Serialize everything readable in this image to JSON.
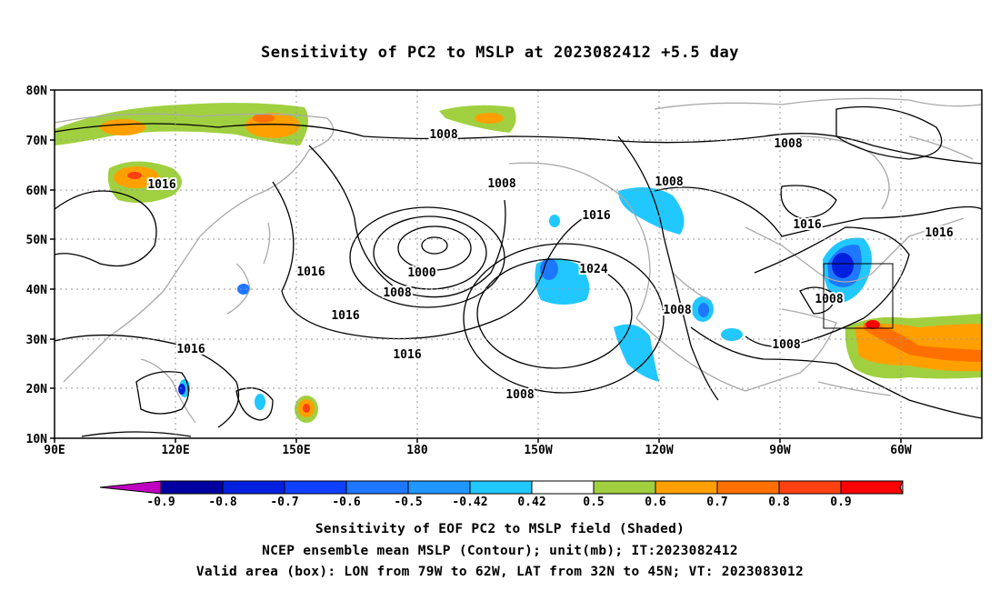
{
  "title": "Sensitivity of PC2 to MSLP at 2023082412 +5.5 day",
  "lat_labels": [
    "80N",
    "70N",
    "60N",
    "50N",
    "40N",
    "30N",
    "20N",
    "10N"
  ],
  "lon_labels": [
    "90E",
    "120E",
    "150E",
    "180",
    "150W",
    "120W",
    "90W",
    "60W"
  ],
  "contour_labels": [
    {
      "text": "1008"
    },
    {
      "text": "1008"
    },
    {
      "text": "1008"
    },
    {
      "text": "1016"
    },
    {
      "text": "1008"
    },
    {
      "text": "1016"
    },
    {
      "text": "1016"
    },
    {
      "text": "1016"
    },
    {
      "text": "1016"
    },
    {
      "text": "1000"
    },
    {
      "text": "1008"
    },
    {
      "text": "1024"
    },
    {
      "text": "1016"
    },
    {
      "text": "1008"
    },
    {
      "text": "1008"
    },
    {
      "text": "1008"
    },
    {
      "text": "1016"
    },
    {
      "text": "1016"
    },
    {
      "text": "1008"
    }
  ],
  "colorbar": {
    "labels": [
      "-0.9",
      "-0.8",
      "-0.7",
      "-0.6",
      "-0.5",
      "-0.42",
      "0.42",
      "0.5",
      "0.6",
      "0.7",
      "0.8",
      "0.9"
    ],
    "colors": [
      "#c000c0",
      "#0000a0",
      "#0020e0",
      "#1040ff",
      "#1e78ff",
      "#2096ff",
      "#20c8ff",
      "#ffffff",
      "#a0d040",
      "#ffa000",
      "#ff7000",
      "#ff4010",
      "#ff0000",
      "#ff90c0"
    ]
  },
  "captions": [
    "Sensitivity of EOF PC2 to MSLP field (Shaded)",
    "NCEP ensemble mean MSLP (Contour); unit(mb); IT:2023082412",
    "Valid area (box): LON from 79W to 62W, LAT from 32N to 45N; VT: 2023083012"
  ]
}
